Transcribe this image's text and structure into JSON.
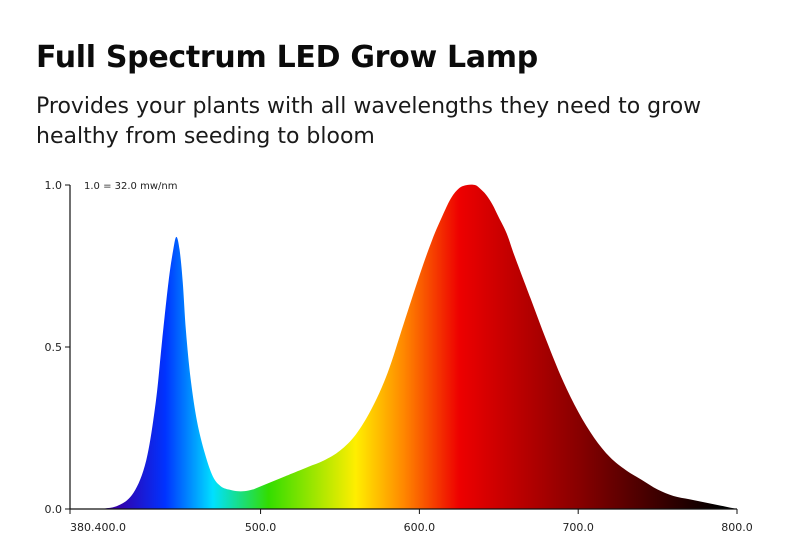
{
  "header": {
    "title": "Full Spectrum LED Grow Lamp",
    "subtitle": "Provides your plants with all wavelengths they need to grow healthy from seeding to bloom"
  },
  "chart_data": {
    "type": "area",
    "title": "",
    "xlabel": "",
    "ylabel": "",
    "annotation": "1.0 = 32.0 mw/nm",
    "xlim": [
      380,
      800
    ],
    "ylim": [
      0,
      1
    ],
    "x_tick_labels": [
      "380.400.0",
      "500.0",
      "600.0",
      "700.0",
      "800.0"
    ],
    "x_ticks": [
      380,
      500,
      600,
      700,
      800
    ],
    "y_tick_labels": [
      "0.0",
      "0.5",
      "1.0"
    ],
    "y_ticks": [
      0,
      0.5,
      1.0
    ],
    "grid": false,
    "fill": "spectral gradient (wavelength colors)",
    "series": [
      {
        "x": [
          398,
          410,
          420,
          428,
          434,
          438,
          442,
          445,
          447,
          449,
          451,
          453,
          456,
          460,
          465,
          470,
          475,
          480,
          485,
          490,
          495,
          500,
          505,
          510,
          515,
          520,
          530,
          540,
          550,
          560,
          570,
          580,
          590,
          600,
          608,
          615,
          620,
          625,
          630,
          635,
          638,
          642,
          646,
          650,
          655,
          660,
          670,
          680,
          690,
          700,
          710,
          720,
          730,
          740,
          750,
          760,
          770,
          780,
          790,
          800
        ],
        "values": [
          0.0,
          0.01,
          0.05,
          0.15,
          0.33,
          0.52,
          0.7,
          0.8,
          0.84,
          0.8,
          0.7,
          0.55,
          0.4,
          0.27,
          0.17,
          0.1,
          0.07,
          0.06,
          0.055,
          0.055,
          0.06,
          0.07,
          0.08,
          0.09,
          0.1,
          0.11,
          0.13,
          0.15,
          0.18,
          0.23,
          0.31,
          0.42,
          0.57,
          0.72,
          0.83,
          0.91,
          0.96,
          0.99,
          1.0,
          1.0,
          0.99,
          0.97,
          0.94,
          0.9,
          0.85,
          0.78,
          0.65,
          0.52,
          0.4,
          0.3,
          0.22,
          0.16,
          0.12,
          0.09,
          0.06,
          0.04,
          0.03,
          0.02,
          0.01,
          0.0
        ]
      }
    ],
    "spectrum_colors": {
      "violet": "#3300aa",
      "blue": "#0033ff",
      "cyan": "#00e0ff",
      "green": "#33dd00",
      "yellow": "#ffee00",
      "orange": "#ff8800",
      "red": "#ee0000",
      "dark_red": "#880000",
      "black": "#000000"
    }
  }
}
